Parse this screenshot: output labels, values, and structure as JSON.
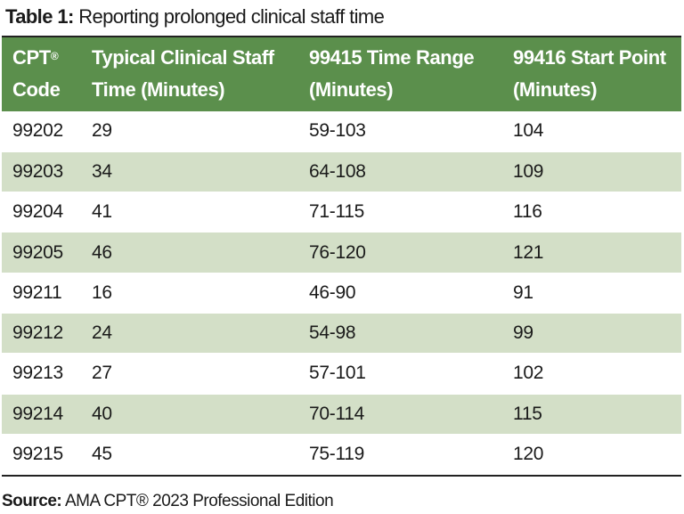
{
  "caption": {
    "label": "Table 1:",
    "text": "Reporting prolonged clinical staff time"
  },
  "table": {
    "headers": [
      {
        "line1": "CPT",
        "sup": "®",
        "line2": "Code"
      },
      {
        "line1": "Typical Clinical Staff",
        "sup": "",
        "line2": "Time (Minutes)"
      },
      {
        "line1": "99415 Time Range",
        "sup": "",
        "line2": "(Minutes)"
      },
      {
        "line1": "99416 Start Point",
        "sup": "",
        "line2": "(Minutes)"
      }
    ],
    "rows": [
      [
        "99202",
        "29",
        "59-103",
        "104"
      ],
      [
        "99203",
        "34",
        "64-108",
        "109"
      ],
      [
        "99204",
        "41",
        "71-115",
        "116"
      ],
      [
        "99205",
        "46",
        "76-120",
        "121"
      ],
      [
        "99211",
        "16",
        "46-90",
        "91"
      ],
      [
        "99212",
        "24",
        "54-98",
        "99"
      ],
      [
        "99213",
        "27",
        "57-101",
        "102"
      ],
      [
        "99214",
        "40",
        "70-114",
        "115"
      ],
      [
        "99215",
        "45",
        "75-119",
        "120"
      ]
    ]
  },
  "source": {
    "label": "Source:",
    "text": "AMA CPT® 2023 Professional Edition"
  },
  "colors": {
    "header_bg": "#5b8f4c",
    "header_text": "#ffffff",
    "stripe": "#d3dfc7",
    "rule": "#222222"
  }
}
